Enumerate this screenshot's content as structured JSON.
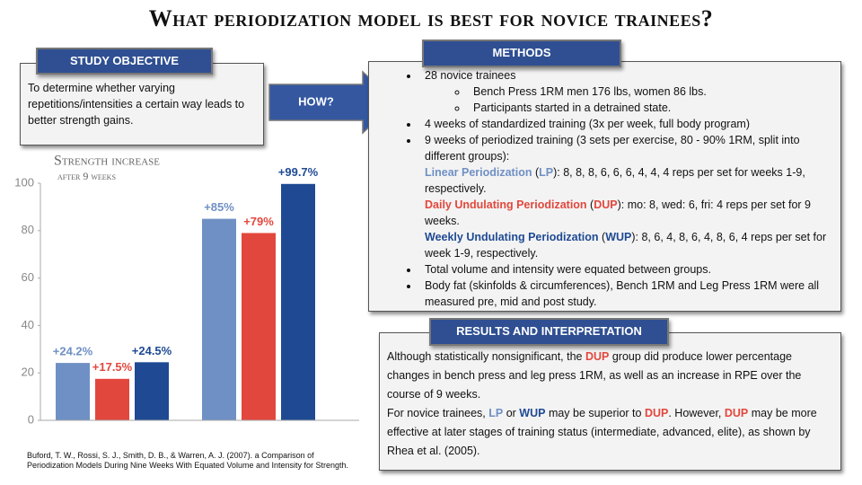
{
  "title": "What periodization model is best for novice trainees?",
  "objective": {
    "heading": "STUDY OBJECTIVE",
    "text": "To determine whether varying repetitions/intensities a certain way leads to better strength gains."
  },
  "how": "HOW?",
  "methods": {
    "heading": "METHODS",
    "items": [
      {
        "text": "28 novice trainees",
        "sub": [
          "Bench Press 1RM men 176 lbs, women 86 lbs.",
          "Participants started in a detrained state."
        ]
      },
      {
        "text": "4 weeks of standardized training (3x per week, full body program)"
      },
      {
        "text": "9 weeks of periodized training (3 sets per exercise, 80 - 90% 1RM, split into different groups):",
        "paragraphs": [
          {
            "runs": [
              {
                "text": "Linear Periodization",
                "style": "lp"
              },
              {
                "text": " ("
              },
              {
                "text": "LP",
                "style": "lp"
              },
              {
                "text": "): 8, 8, 8, 6, 6, 6, 4, 4, 4 reps per set for weeks 1-9, respectively."
              }
            ]
          },
          {
            "runs": [
              {
                "text": "Daily Undulating Periodization",
                "style": "dup"
              },
              {
                "text": " ("
              },
              {
                "text": "DUP",
                "style": "dup"
              },
              {
                "text": "): mo: 8, wed: 6, fri: 4 reps per set for 9 weeks."
              }
            ]
          },
          {
            "runs": [
              {
                "text": "Weekly Undulating Periodization",
                "style": "wup"
              },
              {
                "text": " ("
              },
              {
                "text": "WUP",
                "style": "wup"
              },
              {
                "text": "): 8, 6, 4, 8, 6, 4, 8, 6, 4 reps per set for week 1-9, respectively."
              }
            ]
          }
        ]
      },
      {
        "text": "Total volume and intensity were equated between groups."
      },
      {
        "text": "Body fat (skinfolds & circumferences), Bench 1RM and Leg Press 1RM were all measured pre, mid and post study."
      }
    ]
  },
  "results": {
    "heading": "RESULTS AND INTERPRETATION",
    "paragraphs": [
      {
        "runs": [
          {
            "text": "Although statistically nonsignificant, the "
          },
          {
            "text": "DUP",
            "style": "dup"
          },
          {
            "text": " group did produce lower percentage changes in bench press and leg press 1RM, as well as an increase in RPE over the course of 9 weeks."
          }
        ]
      },
      {
        "runs": [
          {
            "text": "For novice trainees, "
          },
          {
            "text": "LP",
            "style": "lp"
          },
          {
            "text": " or "
          },
          {
            "text": "WUP",
            "style": "wup"
          },
          {
            "text": " may be superior to "
          },
          {
            "text": "DUP",
            "style": "dup"
          },
          {
            "text": ". However, "
          },
          {
            "text": "DUP",
            "style": "dup"
          },
          {
            "text": " may be more effective at later stages of training status (intermediate, advanced, elite), as shown by Rhea et al. (2005)."
          }
        ]
      }
    ]
  },
  "citation": "Buford, T. W., Rossi, S. J., Smith, D. B., & Warren, A. J. (2007). a Comparison of Periodization Models During Nine Weeks With Equated Volume and Intensity for Strength.",
  "chart_data": {
    "type": "bar",
    "title": "Strength increase",
    "subtitle": "after 9 weeks",
    "categories": [
      null,
      null
    ],
    "series": [
      {
        "color": "#6f90c4",
        "values": [
          24.2,
          85
        ],
        "value_labels": [
          "+24.2%",
          "+85%"
        ]
      },
      {
        "color": "#e2473d",
        "values": [
          17.5,
          79
        ],
        "value_labels": [
          "+17.5%",
          "+79%"
        ]
      },
      {
        "color": "#1f4a93",
        "values": [
          24.5,
          99.7
        ],
        "value_labels": [
          "+24.5%",
          "+99.7%"
        ]
      }
    ],
    "ylim": [
      0,
      100
    ],
    "yticks": [
      0,
      20,
      40,
      60,
      80,
      100
    ],
    "grid": false
  }
}
